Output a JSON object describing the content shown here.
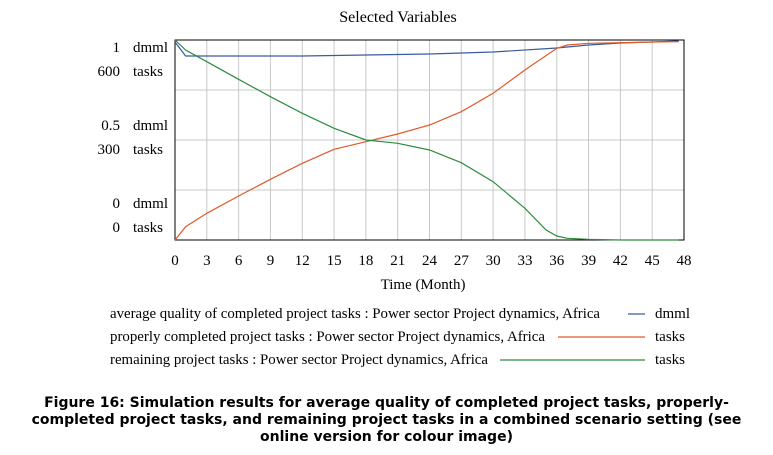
{
  "chart_data": {
    "type": "line",
    "title": "Selected Variables",
    "xlabel": "Time (Month)",
    "xlim": [
      0,
      48
    ],
    "x_ticks": [
      "0",
      "3",
      "6",
      "9",
      "12",
      "15",
      "18",
      "21",
      "24",
      "27",
      "30",
      "33",
      "36",
      "39",
      "42",
      "45",
      "48"
    ],
    "y_axes": [
      {
        "unit": "dmml",
        "range": [
          0,
          1
        ],
        "ticks": [
          {
            "value": 1,
            "label": "1"
          },
          {
            "value": 0.5,
            "label": "0.5"
          },
          {
            "value": 0,
            "label": "0"
          }
        ]
      },
      {
        "unit": "tasks",
        "range": [
          0,
          600
        ],
        "ticks": [
          {
            "value": 600,
            "label": "600"
          },
          {
            "value": 300,
            "label": "300"
          },
          {
            "value": 0,
            "label": "0"
          }
        ]
      }
    ],
    "grid": true,
    "series": [
      {
        "name": "average quality of completed project tasks : Power sector Project dynamics, Africa",
        "unit": "dmml",
        "axis": 0,
        "color": "#3a5ba0",
        "x": [
          0,
          1,
          3,
          6,
          12,
          18,
          24,
          30,
          36,
          39,
          42,
          45,
          47.5
        ],
        "values": [
          0.99,
          0.92,
          0.92,
          0.92,
          0.92,
          0.925,
          0.93,
          0.94,
          0.96,
          0.975,
          0.985,
          0.99,
          0.995
        ]
      },
      {
        "name": "properly completed project tasks : Power sector Project dynamics, Africa",
        "unit": "tasks",
        "axis": 1,
        "color": "#e05a2b",
        "x": [
          0,
          1,
          3,
          6,
          9,
          12,
          15,
          18,
          21,
          24,
          27,
          30,
          33,
          36,
          37,
          39,
          42,
          45,
          47.5
        ],
        "values": [
          0,
          40,
          80,
          132,
          182,
          230,
          272,
          295,
          318,
          345,
          385,
          440,
          510,
          575,
          585,
          590,
          592,
          594,
          595
        ]
      },
      {
        "name": "remaining project tasks : Power sector Project dynamics, Africa",
        "unit": "tasks",
        "axis": 1,
        "color": "#2e8b3e",
        "x": [
          0,
          1,
          3,
          6,
          9,
          12,
          15,
          18,
          21,
          24,
          27,
          30,
          33,
          35,
          36,
          37,
          39,
          42,
          45,
          47.5
        ],
        "values": [
          600,
          570,
          535,
          482,
          430,
          380,
          335,
          300,
          290,
          270,
          232,
          175,
          95,
          30,
          12,
          5,
          2,
          0,
          0,
          0
        ]
      }
    ]
  },
  "caption": "Figure 16: Simulation results for average quality of completed project tasks, properly-completed project tasks, and remaining project tasks in a combined scenario setting (see online version for colour image)"
}
